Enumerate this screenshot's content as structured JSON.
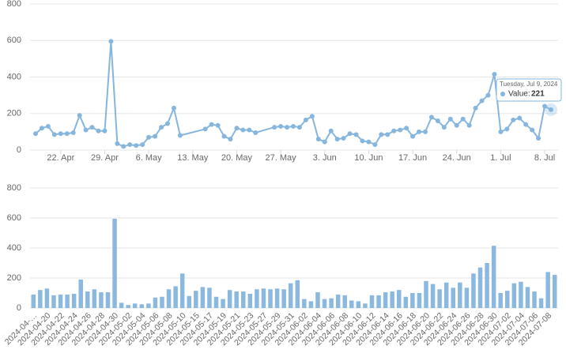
{
  "chart_data": [
    {
      "type": "line",
      "color": "#86b6dd",
      "grid": true,
      "x": [
        "2024-04-18",
        "2024-04-19",
        "2024-04-20",
        "2024-04-21",
        "2024-04-22",
        "2024-04-23",
        "2024-04-24",
        "2024-04-25",
        "2024-04-26",
        "2024-04-27",
        "2024-04-28",
        "2024-04-29",
        "2024-04-30",
        "2024-05-01",
        "2024-05-02",
        "2024-05-03",
        "2024-05-04",
        "2024-05-05",
        "2024-05-06",
        "2024-05-07",
        "2024-05-08",
        "2024-05-09",
        "2024-05-10",
        "2024-05-11",
        "2024-05-15",
        "2024-05-16",
        "2024-05-17",
        "2024-05-18",
        "2024-05-19",
        "2024-05-20",
        "2024-05-21",
        "2024-05-22",
        "2024-05-23",
        "2024-05-26",
        "2024-05-27",
        "2024-05-28",
        "2024-05-29",
        "2024-05-30",
        "2024-05-31",
        "2024-06-01",
        "2024-06-02",
        "2024-06-03",
        "2024-06-04",
        "2024-06-05",
        "2024-06-06",
        "2024-06-07",
        "2024-06-08",
        "2024-06-09",
        "2024-06-10",
        "2024-06-11",
        "2024-06-12",
        "2024-06-13",
        "2024-06-14",
        "2024-06-15",
        "2024-06-16",
        "2024-06-17",
        "2024-06-18",
        "2024-06-19",
        "2024-06-20",
        "2024-06-21",
        "2024-06-22",
        "2024-06-23",
        "2024-06-24",
        "2024-06-25",
        "2024-06-26",
        "2024-06-27",
        "2024-06-28",
        "2024-06-29",
        "2024-06-30",
        "2024-07-01",
        "2024-07-02",
        "2024-07-03",
        "2024-07-04",
        "2024-07-05",
        "2024-07-06",
        "2024-07-07",
        "2024-07-08",
        "2024-07-09"
      ],
      "values": [
        90,
        120,
        130,
        85,
        90,
        90,
        95,
        190,
        110,
        125,
        105,
        105,
        595,
        35,
        20,
        30,
        25,
        30,
        70,
        75,
        125,
        145,
        230,
        80,
        115,
        140,
        135,
        75,
        60,
        120,
        110,
        110,
        95,
        125,
        130,
        125,
        130,
        125,
        165,
        185,
        60,
        45,
        105,
        60,
        65,
        90,
        85,
        50,
        45,
        30,
        85,
        85,
        105,
        110,
        120,
        75,
        100,
        100,
        180,
        160,
        125,
        170,
        135,
        170,
        135,
        230,
        270,
        300,
        415,
        100,
        115,
        165,
        175,
        140,
        110,
        65,
        240,
        221
      ],
      "xticks": [
        {
          "value": "2024-04-22",
          "label": "22. Apr"
        },
        {
          "value": "2024-04-29",
          "label": "29. Apr"
        },
        {
          "value": "2024-05-06",
          "label": "6. May"
        },
        {
          "value": "2024-05-13",
          "label": "13. May"
        },
        {
          "value": "2024-05-20",
          "label": "20. May"
        },
        {
          "value": "2024-05-27",
          "label": "27. May"
        },
        {
          "value": "2024-06-03",
          "label": "3. Jun"
        },
        {
          "value": "2024-06-10",
          "label": "10. Jun"
        },
        {
          "value": "2024-06-17",
          "label": "17. Jun"
        },
        {
          "value": "2024-06-24",
          "label": "24. Jun"
        },
        {
          "value": "2024-07-01",
          "label": "1. Jul"
        },
        {
          "value": "2024-07-08",
          "label": "8. Jul"
        }
      ],
      "ylim": [
        0,
        800
      ],
      "yticks": [
        0,
        200,
        400,
        600,
        800
      ],
      "tooltip": {
        "title": "Tuesday, Jul 9, 2024",
        "label": "Value:"
      }
    },
    {
      "type": "bar",
      "color": "#8ab8de",
      "grid": true,
      "categories": [
        "2024-04-…",
        null,
        "2024-04-20",
        null,
        "2024-04-22",
        null,
        "2024-04-24",
        null,
        "2024-04-26",
        null,
        "2024-04-28",
        null,
        "2024-04-30",
        null,
        "2024-05-02",
        null,
        "2024-05-04",
        null,
        "2024-05-06",
        null,
        "2024-05-08",
        null,
        "2024-05-10",
        null,
        "2024-05-15",
        null,
        "2024-05-17",
        null,
        "2024-05-19",
        null,
        "2024-05-21",
        null,
        "2024-05-23",
        null,
        "2024-05-27",
        null,
        "2024-05-29",
        null,
        "2024-05-31",
        null,
        "2024-06-02",
        null,
        "2024-06-04",
        null,
        "2024-06-06",
        null,
        "2024-06-08",
        null,
        "2024-06-10",
        null,
        "2024-06-12",
        null,
        "2024-06-14",
        null,
        "2024-06-16",
        null,
        "2024-06-18",
        null,
        "2024-06-20",
        null,
        "2024-06-22",
        null,
        "2024-06-24",
        null,
        "2024-06-26",
        null,
        "2024-06-28",
        null,
        "2024-06-30",
        null,
        "2024-07-02",
        null,
        "2024-07-04",
        null,
        "2024-07-06",
        null,
        "2024-07-08",
        null
      ],
      "values": [
        90,
        120,
        130,
        85,
        90,
        90,
        95,
        190,
        110,
        125,
        105,
        105,
        595,
        35,
        20,
        30,
        25,
        30,
        70,
        75,
        125,
        145,
        230,
        80,
        115,
        140,
        135,
        75,
        60,
        120,
        110,
        110,
        95,
        125,
        130,
        125,
        130,
        125,
        165,
        185,
        60,
        45,
        105,
        60,
        65,
        90,
        85,
        50,
        45,
        30,
        85,
        85,
        105,
        110,
        120,
        75,
        100,
        100,
        180,
        160,
        125,
        170,
        135,
        170,
        135,
        230,
        270,
        300,
        415,
        100,
        115,
        165,
        175,
        140,
        110,
        65,
        240,
        221
      ],
      "ylim": [
        0,
        800
      ],
      "yticks": [
        0,
        200,
        400,
        600,
        800
      ]
    }
  ]
}
